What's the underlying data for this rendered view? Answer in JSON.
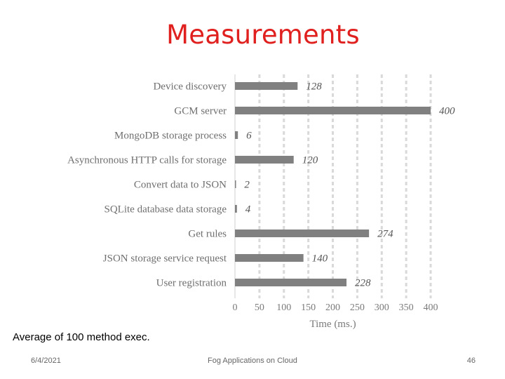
{
  "slide": {
    "title": "Measurements",
    "caption": "Average of 100 method exec.",
    "footer_date": "6/4/2021",
    "footer_center": "Fog Applications on Cloud",
    "page_number": "46"
  },
  "chart_data": {
    "type": "bar",
    "orientation": "horizontal",
    "categories": [
      "Device discovery",
      "GCM server",
      "MongoDB storage process",
      "Asynchronous HTTP calls for storage",
      "Convert data to JSON",
      "SQLite database data storage",
      "Get rules",
      "JSON storage service request",
      "User registration"
    ],
    "values": [
      128,
      400,
      6,
      120,
      2,
      4,
      274,
      140,
      228
    ],
    "xlabel": "Time (ms.)",
    "ylabel": "",
    "xlim": [
      0,
      400
    ],
    "xticks": [
      0,
      50,
      100,
      150,
      200,
      250,
      300,
      350,
      400
    ],
    "grid": "vertical dashed",
    "bar_color": "#808080",
    "data_labels": true
  },
  "colors": {
    "title": "#e0201e",
    "bar": "#808080",
    "grid": "#d9d9d9"
  }
}
